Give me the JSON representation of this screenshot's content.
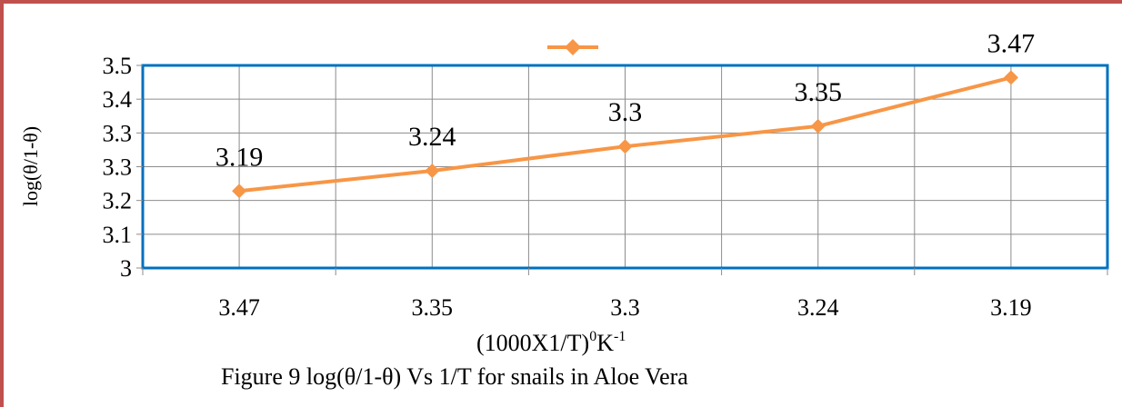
{
  "chart_data": {
    "type": "line",
    "categories": [
      "3.47",
      "3.35",
      "3.3",
      "3.24",
      "3.19"
    ],
    "series": [
      {
        "name": "",
        "values": [
          3.19,
          3.24,
          3.3,
          3.35,
          3.47
        ],
        "color": "#f79646"
      }
    ],
    "data_labels": [
      "3.19",
      "3.24",
      "3.3",
      "3.35",
      "3.47"
    ],
    "ylim": [
      3.0,
      3.5
    ],
    "ytick_labels": [
      "3",
      "3.1",
      "3.2",
      "3.3",
      "3.3",
      "3.4",
      "3.5"
    ],
    "ylabel": "log(θ/1-θ)",
    "xlabel": "(1000X1/T)",
    "xlabel_sup1": "0",
    "xlabel_mid": "K",
    "xlabel_sup2": "-1",
    "grid": true,
    "legend": "top-center",
    "plot_border_color": "#0070c0"
  },
  "caption": "Figure 9 log(θ/1-θ) Vs 1/T for snails in Aloe Vera",
  "frame_color": "#c0504d"
}
